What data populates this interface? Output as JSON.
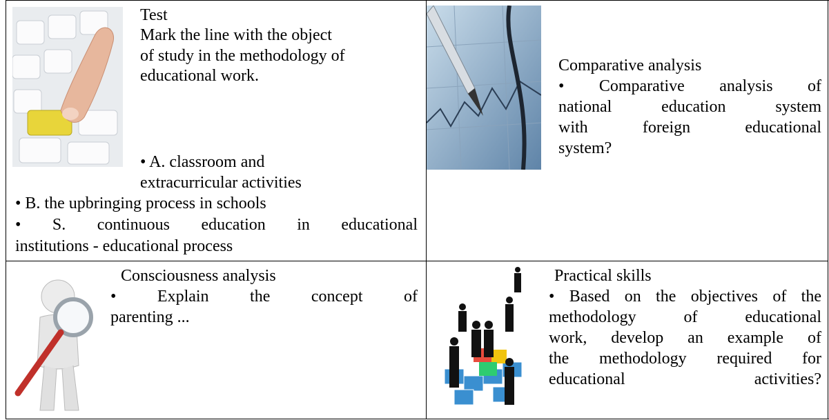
{
  "cells": [
    {
      "title": "Test",
      "lines": [
        "Mark the line with the object",
        "of study in the methodology of",
        "educational work.",
        "• A. classroom and",
        "extracurricular activities",
        "• B. the upbringing process in schools",
        "• S. continuous education in educational",
        "institutions - educational process"
      ]
    },
    {
      "title": "Comparative analysis",
      "lines": [
        "• Comparative analysis of",
        "national education system",
        "with foreign educational",
        "system?"
      ]
    },
    {
      "title": "Consciousness analysis",
      "lines": [
        "• Explain the concept of",
        "parenting ..."
      ]
    },
    {
      "title": "Practical skills",
      "lines": [
        "• Based on the objectives of the",
        "methodology of educational",
        "work, develop an example of",
        "the methodology required for",
        "educational activities?"
      ]
    }
  ]
}
